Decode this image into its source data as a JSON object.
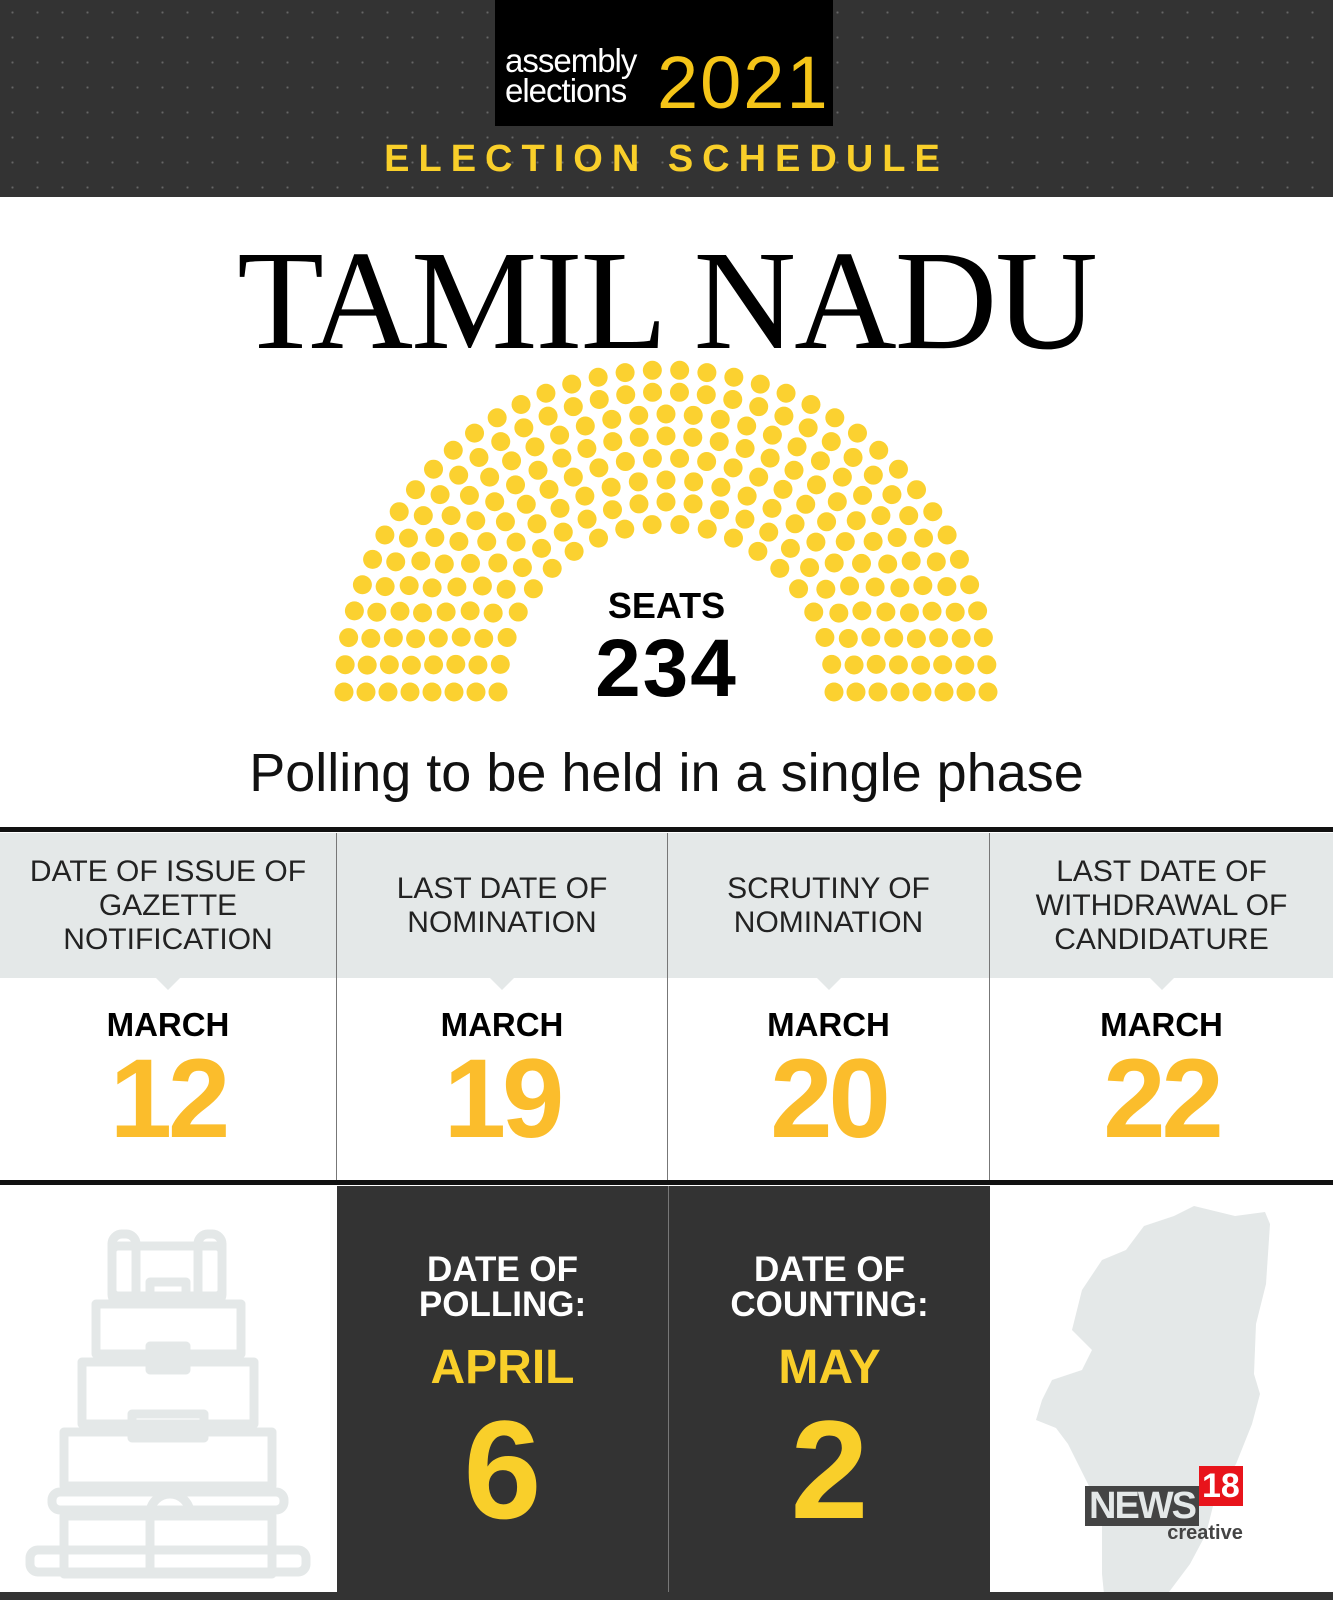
{
  "header": {
    "logo_line1": "assembly",
    "logo_line2": "elections",
    "logo_year": "2021",
    "subtitle": "ELECTION SCHEDULE"
  },
  "state": "TAMIL NADU",
  "seats": {
    "label": "SEATS",
    "count": 234,
    "count_text": "234",
    "dot_color": "#fbd130"
  },
  "phase_text": "Polling to be held in a single phase",
  "schedule": [
    {
      "label": "DATE OF ISSUE OF GAZETTE NOTIFICATION",
      "month": "MARCH",
      "day": "12"
    },
    {
      "label": "LAST DATE OF NOMINATION",
      "month": "MARCH",
      "day": "19"
    },
    {
      "label": "SCRUTINY OF NOMINATION",
      "month": "MARCH",
      "day": "20"
    },
    {
      "label": "LAST DATE OF WITHDRAWAL OF CANDIDATURE",
      "month": "MARCH",
      "day": "22"
    }
  ],
  "polling": {
    "label": "DATE OF POLLING:",
    "month": "APRIL",
    "day": "6"
  },
  "counting": {
    "label": "DATE OF COUNTING:",
    "month": "MAY",
    "day": "2"
  },
  "brand": {
    "name": "NEWS",
    "num": "18",
    "sub": "creative"
  },
  "colors": {
    "accent": "#f9cf2a",
    "dark": "#333333",
    "panel": "#e4e8e8",
    "brand_red": "#e8141b"
  }
}
